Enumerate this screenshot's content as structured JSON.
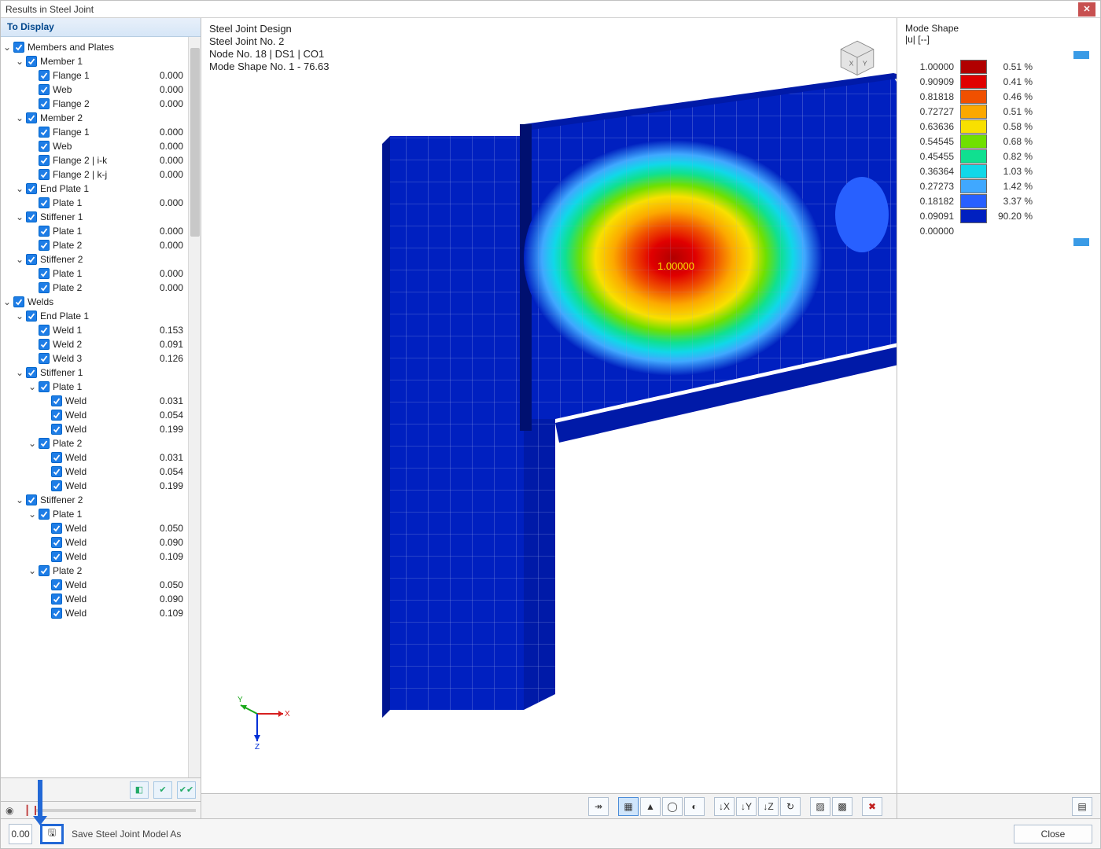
{
  "window": {
    "title": "Results in Steel Joint"
  },
  "left": {
    "header": "To Display",
    "tree": [
      {
        "indent": 0,
        "caret": "v",
        "label": "Members and Plates"
      },
      {
        "indent": 1,
        "caret": "v",
        "label": "Member 1"
      },
      {
        "indent": 2,
        "label": "Flange 1",
        "val": "0.000",
        "ok": true
      },
      {
        "indent": 2,
        "label": "Web",
        "val": "0.000",
        "ok": true
      },
      {
        "indent": 2,
        "label": "Flange 2",
        "val": "0.000",
        "ok": true
      },
      {
        "indent": 1,
        "caret": "v",
        "label": "Member 2"
      },
      {
        "indent": 2,
        "label": "Flange 1",
        "val": "0.000",
        "ok": true
      },
      {
        "indent": 2,
        "label": "Web",
        "val": "0.000",
        "ok": true
      },
      {
        "indent": 2,
        "label": "Flange 2 | i-k",
        "val": "0.000",
        "ok": true
      },
      {
        "indent": 2,
        "label": "Flange 2 | k-j",
        "val": "0.000",
        "ok": true
      },
      {
        "indent": 1,
        "caret": "v",
        "label": "End Plate 1"
      },
      {
        "indent": 2,
        "label": "Plate 1",
        "val": "0.000",
        "ok": true
      },
      {
        "indent": 1,
        "caret": "v",
        "label": "Stiffener 1"
      },
      {
        "indent": 2,
        "label": "Plate 1",
        "val": "0.000",
        "ok": true
      },
      {
        "indent": 2,
        "label": "Plate 2",
        "val": "0.000",
        "ok": true
      },
      {
        "indent": 1,
        "caret": "v",
        "label": "Stiffener 2"
      },
      {
        "indent": 2,
        "label": "Plate 1",
        "val": "0.000",
        "ok": true
      },
      {
        "indent": 2,
        "label": "Plate 2",
        "val": "0.000",
        "ok": true
      },
      {
        "indent": 0,
        "caret": "v",
        "label": "Welds"
      },
      {
        "indent": 1,
        "caret": "v",
        "label": "End Plate 1"
      },
      {
        "indent": 2,
        "label": "Weld 1",
        "val": "0.153",
        "ok": true
      },
      {
        "indent": 2,
        "label": "Weld 2",
        "val": "0.091",
        "ok": true
      },
      {
        "indent": 2,
        "label": "Weld 3",
        "val": "0.126",
        "ok": true
      },
      {
        "indent": 1,
        "caret": "v",
        "label": "Stiffener 1"
      },
      {
        "indent": 2,
        "caret": "v",
        "label": "Plate 1"
      },
      {
        "indent": 3,
        "label": "Weld",
        "val": "0.031",
        "ok": true
      },
      {
        "indent": 3,
        "label": "Weld",
        "val": "0.054",
        "ok": true
      },
      {
        "indent": 3,
        "label": "Weld",
        "val": "0.199",
        "ok": true
      },
      {
        "indent": 2,
        "caret": "v",
        "label": "Plate 2"
      },
      {
        "indent": 3,
        "label": "Weld",
        "val": "0.031",
        "ok": true
      },
      {
        "indent": 3,
        "label": "Weld",
        "val": "0.054",
        "ok": true
      },
      {
        "indent": 3,
        "label": "Weld",
        "val": "0.199",
        "ok": true
      },
      {
        "indent": 1,
        "caret": "v",
        "label": "Stiffener 2"
      },
      {
        "indent": 2,
        "caret": "v",
        "label": "Plate 1"
      },
      {
        "indent": 3,
        "label": "Weld",
        "val": "0.050",
        "ok": true
      },
      {
        "indent": 3,
        "label": "Weld",
        "val": "0.090",
        "ok": true
      },
      {
        "indent": 3,
        "label": "Weld",
        "val": "0.109",
        "ok": true
      },
      {
        "indent": 2,
        "caret": "v",
        "label": "Plate 2"
      },
      {
        "indent": 3,
        "label": "Weld",
        "val": "0.050",
        "ok": true
      },
      {
        "indent": 3,
        "label": "Weld",
        "val": "0.090",
        "ok": true
      },
      {
        "indent": 3,
        "label": "Weld",
        "val": "0.109",
        "ok": true
      }
    ]
  },
  "viewport": {
    "info": [
      "Steel Joint Design",
      "Steel Joint No. 2",
      "Node No. 18 | DS1 | CO1",
      "Mode Shape No. 1 - 76.63"
    ],
    "peak_label": "1.00000",
    "axes": {
      "x_color": "#d62020",
      "y_color": "#1aa81a",
      "z_color": "#002fd6"
    },
    "model": {
      "base_color": "#0020c0",
      "mesh_color": "#9aa6e0",
      "contour_colors": [
        "#e00000",
        "#f05000",
        "#fca800",
        "#f8e000",
        "#d0f000",
        "#70e000",
        "#10e090",
        "#10c8f0",
        "#2080ff",
        "#2040f0",
        "#0020c0"
      ]
    }
  },
  "legend": {
    "title1": "Mode Shape",
    "title2": "|u| [--]",
    "ticks": [
      "1.00000",
      "0.90909",
      "0.81818",
      "0.72727",
      "0.63636",
      "0.54545",
      "0.45455",
      "0.36364",
      "0.27273",
      "0.18182",
      "0.09091",
      "0.00000"
    ],
    "colors": [
      "#b10000",
      "#e00000",
      "#f05000",
      "#fca800",
      "#f8e000",
      "#70e000",
      "#10e090",
      "#10d8e8",
      "#40a8ff",
      "#2860ff",
      "#0020c0"
    ],
    "pcts": [
      "0.51 %",
      "0.41 %",
      "0.46 %",
      "0.51 %",
      "0.58 %",
      "0.68 %",
      "0.82 %",
      "1.03 %",
      "1.42 %",
      "3.37 %",
      "90.20 %"
    ]
  },
  "footer": {
    "num_label": "0.00",
    "save_label": "Save Steel Joint Model As",
    "close_label": "Close"
  }
}
